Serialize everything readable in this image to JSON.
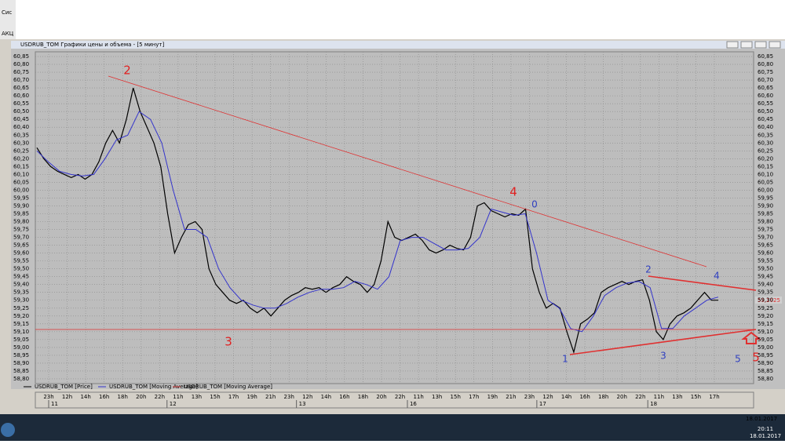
{
  "chart_data": {
    "type": "line",
    "title": "USDRUB_TOM Графики цены и объема - [5 минут]",
    "series": [
      {
        "name": "USDRUB_TOM [Price]",
        "color": "#000000",
        "values": [
          60.27,
          60.2,
          60.15,
          60.12,
          60.1,
          60.08,
          60.1,
          60.07,
          60.1,
          60.18,
          60.3,
          60.38,
          60.3,
          60.45,
          60.65,
          60.5,
          60.4,
          60.3,
          60.15,
          59.85,
          59.6,
          59.7,
          59.78,
          59.8,
          59.75,
          59.5,
          59.4,
          59.35,
          59.3,
          59.28,
          59.3,
          59.25,
          59.22,
          59.25,
          59.2,
          59.25,
          59.3,
          59.33,
          59.35,
          59.38,
          59.37,
          59.38,
          59.35,
          59.38,
          59.4,
          59.45,
          59.42,
          59.4,
          59.35,
          59.4,
          59.55,
          59.8,
          59.7,
          59.68,
          59.7,
          59.72,
          59.68,
          59.62,
          59.6,
          59.62,
          59.65,
          59.63,
          59.62,
          59.7,
          59.9,
          59.92,
          59.87,
          59.85,
          59.83,
          59.85,
          59.84,
          59.88,
          59.5,
          59.35,
          59.25,
          59.28,
          59.25,
          59.1,
          58.97,
          59.15,
          59.18,
          59.22,
          59.35,
          59.38,
          59.4,
          59.42,
          59.4,
          59.42,
          59.43,
          59.3,
          59.1,
          59.05,
          59.15,
          59.2,
          59.22,
          59.25,
          59.3,
          59.35,
          59.3,
          59.3
        ]
      },
      {
        "name": "USDRUB_TOM [Moving Average]",
        "color": "#3333cc",
        "values": [
          60.25,
          60.18,
          60.12,
          60.1,
          60.09,
          60.1,
          60.2,
          60.32,
          60.35,
          60.5,
          60.45,
          60.3,
          60.0,
          59.75,
          59.75,
          59.7,
          59.5,
          59.38,
          59.3,
          59.27,
          59.25,
          59.25,
          59.28,
          59.32,
          59.35,
          59.37,
          59.37,
          59.38,
          59.42,
          59.4,
          59.37,
          59.45,
          59.68,
          59.7,
          59.7,
          59.66,
          59.62,
          59.62,
          59.63,
          59.7,
          59.88,
          59.86,
          59.84,
          59.85,
          59.6,
          59.3,
          59.25,
          59.12,
          59.1,
          59.2,
          59.33,
          59.38,
          59.41,
          59.42,
          59.38,
          59.12,
          59.12,
          59.2,
          59.25,
          59.3,
          59.32
        ]
      },
      {
        "name": "USDRUB_TOM [Moving Average]",
        "color": "#cc3333",
        "values": []
      }
    ],
    "days": [
      {
        "day": "11",
        "hours": [
          "23h",
          "12h",
          "14h",
          "16h",
          "18h",
          "20h",
          "22h"
        ]
      },
      {
        "day": "12",
        "hours": [
          "11h",
          "13h",
          "15h",
          "17h",
          "19h",
          "21h",
          "23h"
        ]
      },
      {
        "day": "13",
        "hours": [
          "12h",
          "14h",
          "16h",
          "18h",
          "20h",
          "22h"
        ]
      },
      {
        "day": "16",
        "hours": [
          "11h",
          "13h",
          "15h",
          "17h",
          "19h",
          "21h",
          "23h"
        ]
      },
      {
        "day": "17",
        "hours": [
          "12h",
          "14h",
          "16h",
          "18h",
          "20h",
          "22h"
        ]
      },
      {
        "day": "18",
        "hours": [
          "11h",
          "13h",
          "15h",
          "17h"
        ]
      }
    ],
    "ylim": [
      58.77,
      60.88
    ],
    "yticks": [
      {
        "value": 60.85,
        "label": "60,85"
      },
      {
        "value": 60.8,
        "label": "60,80"
      },
      {
        "value": 60.75,
        "label": "60,75"
      },
      {
        "value": 60.7,
        "label": "60,70"
      },
      {
        "value": 60.65,
        "label": "60,65"
      },
      {
        "value": 60.6,
        "label": "60,60"
      },
      {
        "value": 60.55,
        "label": "60,55"
      },
      {
        "value": 60.5,
        "label": "60,50"
      },
      {
        "value": 60.45,
        "label": "60,45"
      },
      {
        "value": 60.4,
        "label": "60,40"
      },
      {
        "value": 60.35,
        "label": "60,35"
      },
      {
        "value": 60.3,
        "label": "60,30"
      },
      {
        "value": 60.25,
        "label": "60,25"
      },
      {
        "value": 60.2,
        "label": "60,20"
      },
      {
        "value": 60.15,
        "label": "60,15"
      },
      {
        "value": 60.1,
        "label": "60,10"
      },
      {
        "value": 60.05,
        "label": "60,05"
      },
      {
        "value": 60.0,
        "label": "60,00"
      },
      {
        "value": 59.95,
        "label": "59,95"
      },
      {
        "value": 59.9,
        "label": "59,90"
      },
      {
        "value": 59.85,
        "label": "59,85"
      },
      {
        "value": 59.8,
        "label": "59,80"
      },
      {
        "value": 59.75,
        "label": "59,75"
      },
      {
        "value": 59.7,
        "label": "59,70"
      },
      {
        "value": 59.65,
        "label": "59,65"
      },
      {
        "value": 59.6,
        "label": "59,60"
      },
      {
        "value": 59.55,
        "label": "59,55"
      },
      {
        "value": 59.5,
        "label": "59,50"
      },
      {
        "value": 59.45,
        "label": "59,45"
      },
      {
        "value": 59.4,
        "label": "59,40"
      },
      {
        "value": 59.35,
        "label": "59,35"
      },
      {
        "value": 59.3,
        "label": "59,30"
      },
      {
        "value": 59.25,
        "label": "59,25"
      },
      {
        "value": 59.2,
        "label": "59,20"
      },
      {
        "value": 59.15,
        "label": "59,15"
      },
      {
        "value": 59.1,
        "label": "59,10"
      },
      {
        "value": 59.05,
        "label": "59,05"
      },
      {
        "value": 59.0,
        "label": "59,00"
      },
      {
        "value": 58.95,
        "label": "58,95"
      },
      {
        "value": 58.9,
        "label": "58,90"
      },
      {
        "value": 58.85,
        "label": "58,85"
      },
      {
        "value": 58.8,
        "label": "58,80"
      }
    ],
    "grid": true,
    "last_price_label": "59,2925",
    "annotations": [
      {
        "text": "2",
        "color": "#e02020"
      },
      {
        "text": "4",
        "color": "#e02020"
      },
      {
        "text": "3",
        "color": "#e02020"
      },
      {
        "text": "5",
        "color": "#e02020"
      },
      {
        "text": "0",
        "color": "#3040c0"
      },
      {
        "text": "2",
        "color": "#3040c0"
      },
      {
        "text": "4",
        "color": "#3040c0"
      },
      {
        "text": "1",
        "color": "#3040c0"
      },
      {
        "text": "3",
        "color": "#3040c0"
      },
      {
        "text": "5",
        "color": "#3040c0"
      }
    ]
  },
  "desktop": {
    "menu": [
      "Сис",
      "АКЦ"
    ],
    "clock_time": "20:11",
    "clock_date": "18.01.2017",
    "date_top": "18.01.2017"
  }
}
